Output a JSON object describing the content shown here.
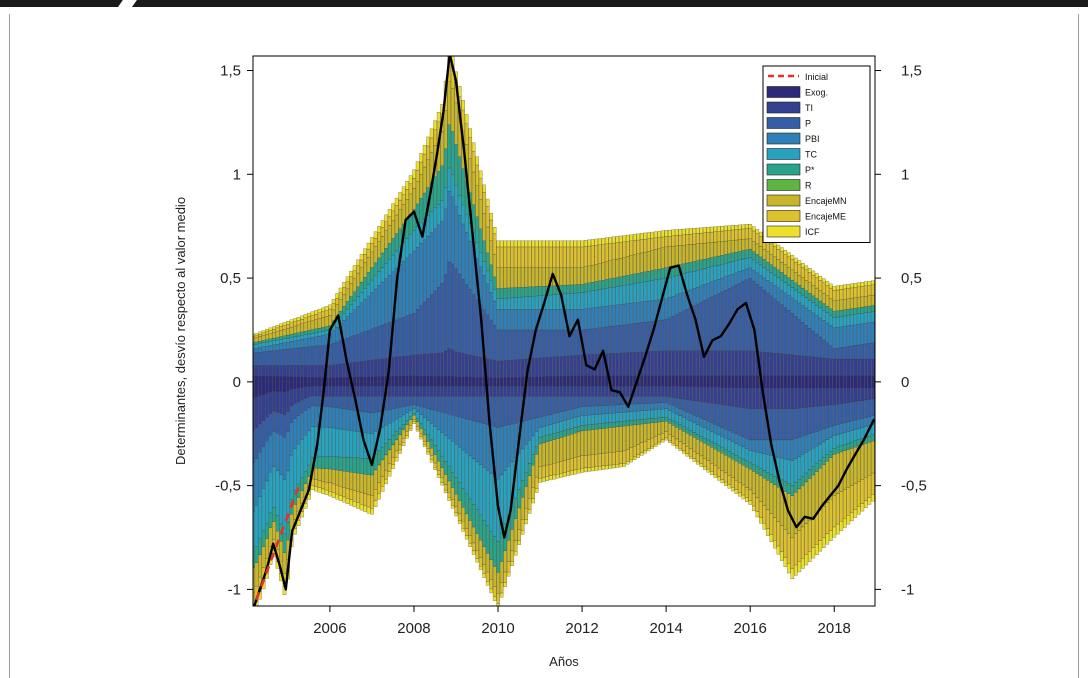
{
  "chart_data": {
    "type": "bar",
    "stacked": true,
    "xlabel": "Años",
    "ylabel": "Determinantes, desvío respecto al valor medio",
    "xlim": [
      2004.17,
      2018.97
    ],
    "ylim": [
      -1.08,
      1.57
    ],
    "x_ticks": [
      {
        "value": 2006,
        "label": "2006"
      },
      {
        "value": 2008,
        "label": "2008"
      },
      {
        "value": 2010,
        "label": "2010"
      },
      {
        "value": 2012,
        "label": "2012"
      },
      {
        "value": 2014,
        "label": "2014"
      },
      {
        "value": 2016,
        "label": "2016"
      },
      {
        "value": 2018,
        "label": "2018"
      }
    ],
    "y_ticks": [
      {
        "value": 1.5,
        "label": "1,5"
      },
      {
        "value": 1,
        "label": "1"
      },
      {
        "value": 0.5,
        "label": "0,5"
      },
      {
        "value": 0,
        "label": "0"
      },
      {
        "value": -0.5,
        "label": "-0,5"
      },
      {
        "value": -1,
        "label": "-1"
      }
    ],
    "grid": false,
    "legend_position": "top-right",
    "legend": [
      {
        "name": "Inicial",
        "color": "#e8302a",
        "style": "dashed-line"
      },
      {
        "name": "Exog.",
        "color": "#2b2a7a"
      },
      {
        "name": "TI",
        "color": "#34408f"
      },
      {
        "name": "P",
        "color": "#355ea6"
      },
      {
        "name": "PBI",
        "color": "#2f80b8"
      },
      {
        "name": "TC",
        "color": "#27a3bf"
      },
      {
        "name": "P*",
        "color": "#2aa38b"
      },
      {
        "name": "R",
        "color": "#5fb542"
      },
      {
        "name": "EncajeMN",
        "color": "#c7b52a"
      },
      {
        "name": "EncajeME",
        "color": "#dcc12c"
      },
      {
        "name": "ICF",
        "color": "#ece02c"
      }
    ],
    "total_line": {
      "name": "Total",
      "color": "#000000",
      "points": [
        [
          2004.2,
          -1.08
        ],
        [
          2004.5,
          -0.9
        ],
        [
          2004.65,
          -0.78
        ],
        [
          2004.8,
          -0.88
        ],
        [
          2004.95,
          -1.0
        ],
        [
          2005.1,
          -0.72
        ],
        [
          2005.3,
          -0.62
        ],
        [
          2005.5,
          -0.52
        ],
        [
          2005.7,
          -0.3
        ],
        [
          2005.85,
          -0.05
        ],
        [
          2006.0,
          0.25
        ],
        [
          2006.2,
          0.32
        ],
        [
          2006.4,
          0.1
        ],
        [
          2006.6,
          -0.08
        ],
        [
          2006.8,
          -0.28
        ],
        [
          2007.0,
          -0.4
        ],
        [
          2007.2,
          -0.22
        ],
        [
          2007.4,
          0.05
        ],
        [
          2007.6,
          0.5
        ],
        [
          2007.8,
          0.78
        ],
        [
          2008.0,
          0.82
        ],
        [
          2008.2,
          0.7
        ],
        [
          2008.4,
          0.92
        ],
        [
          2008.55,
          1.1
        ],
        [
          2008.7,
          1.3
        ],
        [
          2008.85,
          1.58
        ],
        [
          2009.0,
          1.45
        ],
        [
          2009.2,
          1.1
        ],
        [
          2009.4,
          0.7
        ],
        [
          2009.6,
          0.3
        ],
        [
          2009.8,
          -0.2
        ],
        [
          2010.0,
          -0.6
        ],
        [
          2010.15,
          -0.75
        ],
        [
          2010.3,
          -0.62
        ],
        [
          2010.5,
          -0.28
        ],
        [
          2010.7,
          0.05
        ],
        [
          2010.9,
          0.25
        ],
        [
          2011.1,
          0.38
        ],
        [
          2011.3,
          0.52
        ],
        [
          2011.5,
          0.42
        ],
        [
          2011.7,
          0.22
        ],
        [
          2011.9,
          0.3
        ],
        [
          2012.1,
          0.08
        ],
        [
          2012.3,
          0.06
        ],
        [
          2012.5,
          0.15
        ],
        [
          2012.7,
          -0.04
        ],
        [
          2012.9,
          -0.05
        ],
        [
          2013.1,
          -0.12
        ],
        [
          2013.3,
          0.0
        ],
        [
          2013.5,
          0.12
        ],
        [
          2013.7,
          0.25
        ],
        [
          2013.9,
          0.4
        ],
        [
          2014.1,
          0.55
        ],
        [
          2014.3,
          0.56
        ],
        [
          2014.5,
          0.42
        ],
        [
          2014.7,
          0.3
        ],
        [
          2014.9,
          0.12
        ],
        [
          2015.1,
          0.2
        ],
        [
          2015.3,
          0.22
        ],
        [
          2015.5,
          0.28
        ],
        [
          2015.7,
          0.35
        ],
        [
          2015.9,
          0.38
        ],
        [
          2016.1,
          0.25
        ],
        [
          2016.3,
          -0.05
        ],
        [
          2016.5,
          -0.3
        ],
        [
          2016.7,
          -0.48
        ],
        [
          2016.9,
          -0.62
        ],
        [
          2017.1,
          -0.7
        ],
        [
          2017.3,
          -0.65
        ],
        [
          2017.5,
          -0.66
        ],
        [
          2017.7,
          -0.6
        ],
        [
          2017.9,
          -0.55
        ],
        [
          2018.1,
          -0.5
        ],
        [
          2018.3,
          -0.42
        ],
        [
          2018.5,
          -0.35
        ],
        [
          2018.7,
          -0.28
        ],
        [
          2018.95,
          -0.18
        ]
      ]
    },
    "initial_line": {
      "name": "Inicial",
      "color": "#e8302a",
      "points": [
        [
          2004.25,
          -1.05
        ],
        [
          2005.3,
          -0.48
        ]
      ]
    },
    "components": [
      {
        "name": "Exog.",
        "color": "#2b2a7a",
        "points": [
          [
            2004.2,
            0.03
          ],
          [
            2006,
            0.02
          ],
          [
            2008,
            0.03
          ],
          [
            2010,
            0.02
          ],
          [
            2012,
            0.03
          ],
          [
            2014,
            0.03
          ],
          [
            2016,
            0.03
          ],
          [
            2018,
            0.03
          ],
          [
            2019,
            0.03
          ]
        ]
      },
      {
        "name": "TI",
        "color": "#34408f",
        "points": [
          [
            2004.2,
            0.05
          ],
          [
            2006,
            0.06
          ],
          [
            2008,
            0.1
          ],
          [
            2009,
            0.12
          ],
          [
            2010,
            0.08
          ],
          [
            2012,
            0.1
          ],
          [
            2014,
            0.12
          ],
          [
            2016,
            0.12
          ],
          [
            2018,
            0.08
          ],
          [
            2019,
            0.08
          ]
        ]
      },
      {
        "name": "P",
        "color": "#355ea6",
        "points": [
          [
            2004.2,
            0.06
          ],
          [
            2006,
            0.1
          ],
          [
            2008,
            0.2
          ],
          [
            2009,
            0.4
          ],
          [
            2010,
            0.15
          ],
          [
            2012,
            0.12
          ],
          [
            2014,
            0.15
          ],
          [
            2016,
            0.35
          ],
          [
            2018,
            0.05
          ],
          [
            2019,
            0.08
          ]
        ]
      },
      {
        "name": "PBI",
        "color": "#2f80b8",
        "points": [
          [
            2004.2,
            0.02
          ],
          [
            2006,
            0.05
          ],
          [
            2008,
            0.3
          ],
          [
            2009,
            0.3
          ],
          [
            2010,
            0.1
          ],
          [
            2012,
            0.1
          ],
          [
            2014,
            0.1
          ],
          [
            2016,
            0.05
          ],
          [
            2018,
            0.1
          ],
          [
            2019,
            0.1
          ]
        ]
      },
      {
        "name": "TC",
        "color": "#27a3bf",
        "points": [
          [
            2004.2,
            0.02
          ],
          [
            2006,
            0.02
          ],
          [
            2008,
            0.1
          ],
          [
            2009,
            0.1
          ],
          [
            2010,
            0.05
          ],
          [
            2012,
            0.08
          ],
          [
            2014,
            0.1
          ],
          [
            2016,
            0.05
          ],
          [
            2018,
            0.05
          ],
          [
            2019,
            0.05
          ]
        ]
      },
      {
        "name": "P*",
        "color": "#2aa38b",
        "points": [
          [
            2004.2,
            0.01
          ],
          [
            2006,
            0.02
          ],
          [
            2008,
            0.1
          ],
          [
            2009,
            0.2
          ],
          [
            2010,
            0.05
          ],
          [
            2012,
            0.04
          ],
          [
            2014,
            0.05
          ],
          [
            2016,
            0.04
          ],
          [
            2018,
            0.03
          ],
          [
            2019,
            0.03
          ]
        ]
      },
      {
        "name": "EncajeMN",
        "color": "#c7b52a",
        "points": [
          [
            2004.2,
            0.02
          ],
          [
            2006,
            0.05
          ],
          [
            2008,
            0.1
          ],
          [
            2009,
            0.2
          ],
          [
            2010,
            0.1
          ],
          [
            2012,
            0.08
          ],
          [
            2014,
            0.1
          ],
          [
            2016,
            0.05
          ],
          [
            2018,
            0.05
          ],
          [
            2019,
            0.05
          ]
        ]
      },
      {
        "name": "EncajeME",
        "color": "#dcc12c",
        "points": [
          [
            2004.2,
            0.01
          ],
          [
            2006,
            0.03
          ],
          [
            2008,
            0.05
          ],
          [
            2009,
            0.1
          ],
          [
            2010,
            0.1
          ],
          [
            2012,
            0.1
          ],
          [
            2014,
            0.05
          ],
          [
            2016,
            0.05
          ],
          [
            2018,
            0.05
          ],
          [
            2019,
            0.05
          ]
        ]
      },
      {
        "name": "ICF",
        "color": "#ece02c",
        "points": [
          [
            2004.2,
            0.01
          ],
          [
            2006,
            0.02
          ],
          [
            2008,
            0.04
          ],
          [
            2009,
            0.05
          ],
          [
            2010,
            0.03
          ],
          [
            2012,
            0.03
          ],
          [
            2014,
            0.03
          ],
          [
            2016,
            0.02
          ],
          [
            2018,
            0.02
          ],
          [
            2019,
            0.02
          ]
        ]
      }
    ],
    "negative_components": [
      {
        "name": "Exog.",
        "color": "#2b2a7a",
        "points": [
          [
            2004.2,
            -0.02
          ],
          [
            2006,
            -0.02
          ],
          [
            2008,
            -0.02
          ],
          [
            2010,
            -0.02
          ],
          [
            2012,
            -0.02
          ],
          [
            2014,
            -0.02
          ],
          [
            2016,
            -0.03
          ],
          [
            2018,
            -0.03
          ],
          [
            2019,
            -0.03
          ]
        ]
      },
      {
        "name": "TI",
        "color": "#34408f",
        "points": [
          [
            2004.2,
            -0.04
          ],
          [
            2006,
            -0.05
          ],
          [
            2008,
            -0.05
          ],
          [
            2010,
            -0.05
          ],
          [
            2012,
            -0.05
          ],
          [
            2014,
            -0.05
          ],
          [
            2016,
            -0.1
          ],
          [
            2017,
            -0.1
          ],
          [
            2018,
            -0.08
          ],
          [
            2019,
            -0.05
          ]
        ]
      },
      {
        "name": "P",
        "color": "#355ea6",
        "points": [
          [
            2004.2,
            -0.04
          ],
          [
            2006,
            -0.05
          ],
          [
            2007,
            -0.08
          ],
          [
            2008,
            -0.04
          ],
          [
            2010,
            -0.15
          ],
          [
            2012,
            -0.05
          ],
          [
            2014,
            -0.03
          ],
          [
            2016,
            -0.15
          ],
          [
            2017,
            -0.15
          ],
          [
            2018,
            -0.1
          ],
          [
            2019,
            -0.08
          ]
        ]
      },
      {
        "name": "PBI",
        "color": "#2f80b8",
        "points": [
          [
            2004.2,
            -0.06
          ],
          [
            2005.5,
            -0.1
          ],
          [
            2007,
            -0.1
          ],
          [
            2008,
            -0.02
          ],
          [
            2010,
            -0.25
          ],
          [
            2011,
            -0.05
          ],
          [
            2014,
            -0.03
          ],
          [
            2016,
            -0.05
          ],
          [
            2017,
            -0.1
          ],
          [
            2018,
            -0.05
          ],
          [
            2019,
            -0.04
          ]
        ]
      },
      {
        "name": "TC",
        "color": "#27a3bf",
        "points": [
          [
            2004.2,
            -0.05
          ],
          [
            2005.5,
            -0.15
          ],
          [
            2007,
            -0.12
          ],
          [
            2008,
            -0.02
          ],
          [
            2010,
            -0.3
          ],
          [
            2011,
            -0.05
          ],
          [
            2014,
            -0.04
          ],
          [
            2016,
            -0.06
          ],
          [
            2017,
            -0.12
          ],
          [
            2018,
            -0.06
          ],
          [
            2019,
            -0.05
          ]
        ]
      },
      {
        "name": "P*",
        "color": "#2aa38b",
        "points": [
          [
            2004.2,
            -0.02
          ],
          [
            2005.5,
            -0.05
          ],
          [
            2007,
            -0.08
          ],
          [
            2008,
            -0.01
          ],
          [
            2010,
            -0.15
          ],
          [
            2011,
            -0.03
          ],
          [
            2014,
            -0.02
          ],
          [
            2016,
            -0.03
          ],
          [
            2017,
            -0.05
          ],
          [
            2018,
            -0.03
          ],
          [
            2019,
            -0.03
          ]
        ]
      },
      {
        "name": "EncajeMN",
        "color": "#c7b52a",
        "points": [
          [
            2004.2,
            -0.03
          ],
          [
            2005.5,
            -0.05
          ],
          [
            2007,
            -0.1
          ],
          [
            2008,
            -0.02
          ],
          [
            2010,
            -0.1
          ],
          [
            2012,
            -0.12
          ],
          [
            2013,
            -0.12
          ],
          [
            2014,
            -0.05
          ],
          [
            2016,
            -0.1
          ],
          [
            2017,
            -0.2
          ],
          [
            2018,
            -0.2
          ],
          [
            2019,
            -0.15
          ]
        ]
      },
      {
        "name": "EncajeME",
        "color": "#dcc12c",
        "points": [
          [
            2004.2,
            -0.02
          ],
          [
            2005.5,
            -0.03
          ],
          [
            2007,
            -0.06
          ],
          [
            2008,
            -0.01
          ],
          [
            2010,
            -0.05
          ],
          [
            2012,
            -0.06
          ],
          [
            2013,
            -0.06
          ],
          [
            2014,
            -0.03
          ],
          [
            2016,
            -0.05
          ],
          [
            2017,
            -0.15
          ],
          [
            2018,
            -0.15
          ],
          [
            2019,
            -0.1
          ]
        ]
      },
      {
        "name": "ICF",
        "color": "#ece02c",
        "points": [
          [
            2004.2,
            -0.01
          ],
          [
            2005.5,
            -0.02
          ],
          [
            2007,
            -0.03
          ],
          [
            2008,
            -0.01
          ],
          [
            2010,
            -0.02
          ],
          [
            2012,
            -0.02
          ],
          [
            2014,
            -0.01
          ],
          [
            2016,
            -0.02
          ],
          [
            2017,
            -0.05
          ],
          [
            2018,
            -0.05
          ],
          [
            2019,
            -0.03
          ]
        ]
      }
    ]
  }
}
